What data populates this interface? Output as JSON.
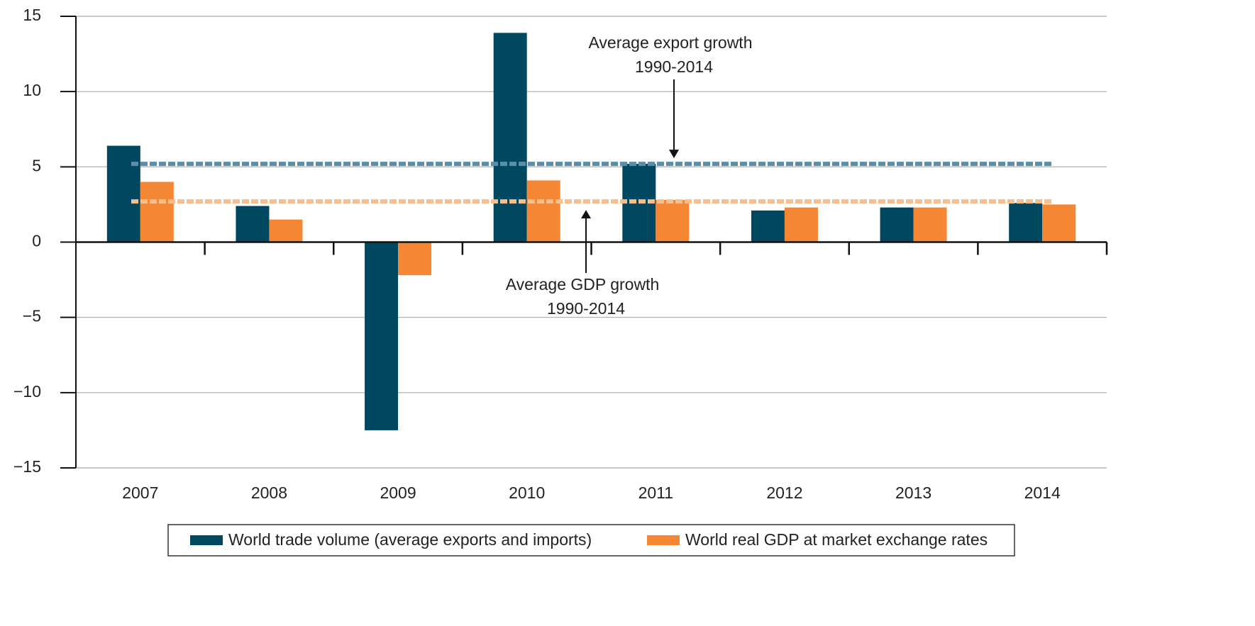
{
  "chart_data": {
    "type": "bar",
    "categories": [
      "2007",
      "2008",
      "2009",
      "2010",
      "2011",
      "2012",
      "2013",
      "2014"
    ],
    "series": [
      {
        "name": "World trade volume (average exports and imports)",
        "color": "#00485f",
        "values": [
          6.4,
          2.4,
          -12.5,
          13.9,
          5.2,
          2.1,
          2.3,
          2.6
        ]
      },
      {
        "name": "World real GDP at market exchange rates",
        "color": "#f58634",
        "values": [
          4.0,
          1.5,
          -2.2,
          4.1,
          2.8,
          2.3,
          2.3,
          2.5
        ]
      }
    ],
    "reference_lines": [
      {
        "value": 5.2,
        "color": "#5b8ea8",
        "label": [
          "Average export growth",
          "1990-2014"
        ]
      },
      {
        "value": 2.7,
        "color": "#f8bf8c",
        "label": [
          "Average GDP growth",
          "1990-2014"
        ]
      }
    ],
    "ylim": [
      -15,
      15
    ],
    "yticks": [
      {
        "value": -15,
        "label": "−15"
      },
      {
        "value": -10,
        "label": "−10"
      },
      {
        "value": -5,
        "label": "−5"
      },
      0,
      5,
      10,
      15
    ],
    "grid": true
  }
}
